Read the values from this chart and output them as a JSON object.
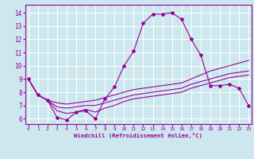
{
  "xlabel": "Windchill (Refroidissement éolien,°C)",
  "bg_color": "#cce8ee",
  "line_color": "#990099",
  "grid_color": "#ffffff",
  "x_ticks": [
    0,
    1,
    2,
    3,
    4,
    5,
    6,
    7,
    8,
    9,
    10,
    11,
    12,
    13,
    14,
    15,
    16,
    17,
    18,
    19,
    20,
    21,
    22,
    23
  ],
  "y_ticks": [
    6,
    7,
    8,
    9,
    10,
    11,
    12,
    13,
    14
  ],
  "xlim": [
    -0.3,
    23.3
  ],
  "ylim": [
    5.6,
    14.6
  ],
  "series1_x": [
    0,
    1,
    2,
    3,
    4,
    5,
    6,
    7,
    8,
    9,
    10,
    11,
    12,
    13,
    14,
    15,
    16,
    17,
    18,
    19,
    20,
    21,
    22,
    23
  ],
  "series1_y": [
    9.0,
    7.8,
    7.4,
    6.1,
    5.9,
    6.5,
    6.6,
    6.0,
    7.5,
    8.4,
    10.0,
    11.1,
    13.2,
    13.9,
    13.9,
    14.0,
    13.5,
    12.0,
    10.8,
    8.5,
    8.5,
    8.6,
    8.3,
    7.0
  ],
  "series2_x": [
    0,
    1,
    2,
    3,
    4,
    5,
    6,
    7,
    8,
    9,
    10,
    11,
    12,
    13,
    14,
    15,
    16,
    17,
    18,
    19,
    20,
    21,
    22,
    23
  ],
  "series2_y": [
    9.0,
    7.8,
    7.4,
    7.2,
    7.1,
    7.2,
    7.3,
    7.4,
    7.6,
    7.8,
    8.0,
    8.2,
    8.3,
    8.4,
    8.5,
    8.6,
    8.7,
    9.0,
    9.3,
    9.6,
    9.8,
    10.0,
    10.2,
    10.4
  ],
  "series3_x": [
    0,
    1,
    2,
    3,
    4,
    5,
    6,
    7,
    8,
    9,
    10,
    11,
    12,
    13,
    14,
    15,
    16,
    17,
    18,
    19,
    20,
    21,
    22,
    23
  ],
  "series3_y": [
    9.0,
    7.8,
    7.4,
    6.9,
    6.8,
    6.9,
    7.0,
    7.0,
    7.2,
    7.4,
    7.6,
    7.8,
    7.9,
    8.0,
    8.1,
    8.2,
    8.3,
    8.6,
    8.8,
    9.0,
    9.2,
    9.4,
    9.5,
    9.6
  ],
  "series4_x": [
    0,
    1,
    2,
    3,
    4,
    5,
    6,
    7,
    8,
    9,
    10,
    11,
    12,
    13,
    14,
    15,
    16,
    17,
    18,
    19,
    20,
    21,
    22,
    23
  ],
  "series4_y": [
    9.0,
    7.8,
    7.4,
    6.6,
    6.4,
    6.5,
    6.7,
    6.5,
    6.8,
    7.0,
    7.3,
    7.5,
    7.6,
    7.7,
    7.8,
    7.9,
    8.0,
    8.3,
    8.5,
    8.7,
    8.9,
    9.1,
    9.2,
    9.3
  ]
}
